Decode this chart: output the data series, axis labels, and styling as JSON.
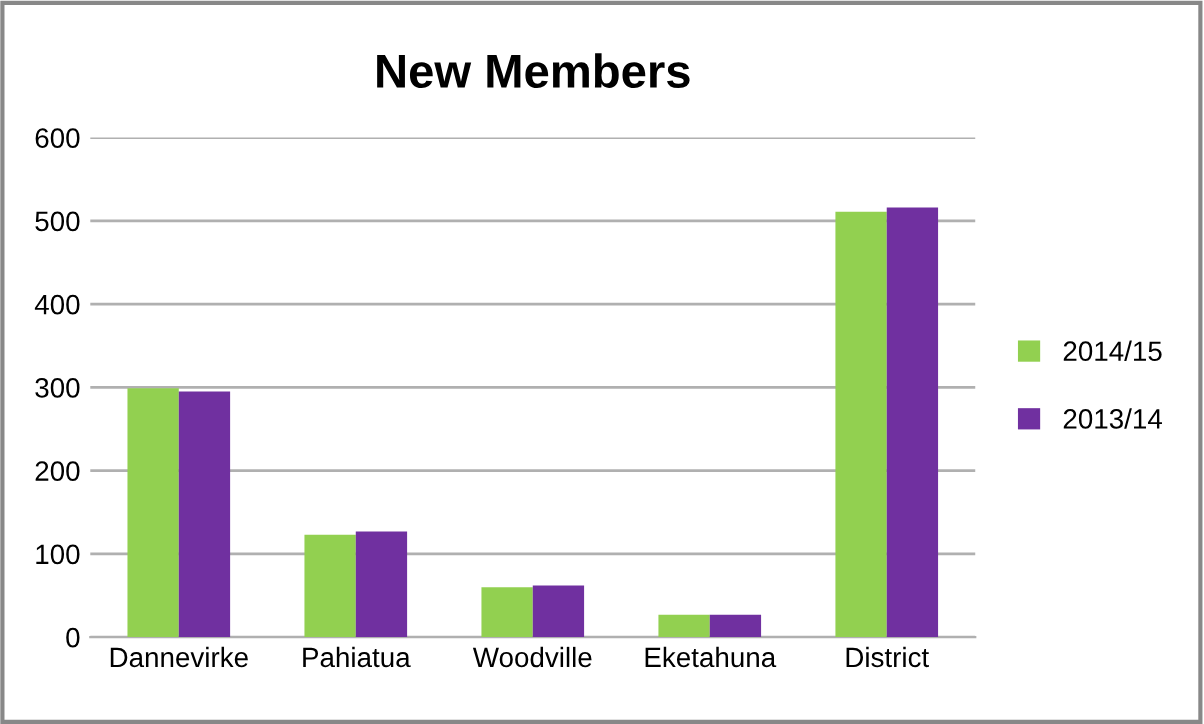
{
  "chart_data": {
    "type": "bar",
    "title": "New Members",
    "categories": [
      "Dannevirke",
      "Pahiatua",
      "Woodville",
      "Eketahuna",
      "District"
    ],
    "series": [
      {
        "name": "2014/15",
        "color": "#92d050",
        "values": [
          299,
          123,
          60,
          27,
          511
        ]
      },
      {
        "name": "2013/14",
        "color": "#7030a0",
        "values": [
          295,
          127,
          62,
          27,
          516
        ]
      }
    ],
    "ylim": [
      0,
      600
    ],
    "yticks": [
      0,
      100,
      200,
      300,
      400,
      500,
      600
    ],
    "grid": "y",
    "legend": "right"
  }
}
